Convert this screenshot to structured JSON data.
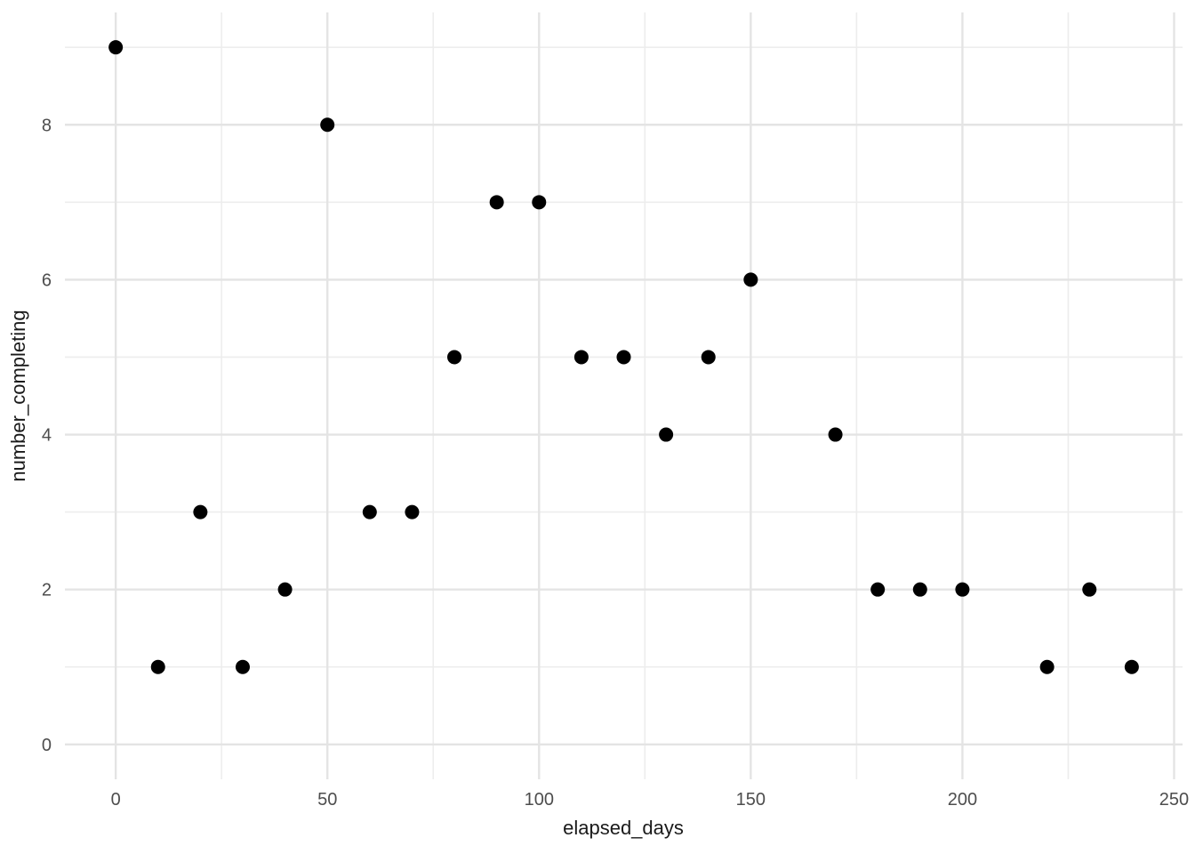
{
  "chart_data": {
    "type": "scatter",
    "title": "",
    "xlabel": "elapsed_days",
    "ylabel": "number_completing",
    "points": [
      [
        0,
        9
      ],
      [
        10,
        1
      ],
      [
        20,
        3
      ],
      [
        30,
        1
      ],
      [
        40,
        2
      ],
      [
        50,
        8
      ],
      [
        60,
        3
      ],
      [
        70,
        3
      ],
      [
        80,
        5
      ],
      [
        90,
        7
      ],
      [
        100,
        7
      ],
      [
        110,
        5
      ],
      [
        120,
        5
      ],
      [
        130,
        4
      ],
      [
        140,
        5
      ],
      [
        150,
        6
      ],
      [
        170,
        4
      ],
      [
        180,
        2
      ],
      [
        190,
        2
      ],
      [
        200,
        2
      ],
      [
        220,
        1
      ],
      [
        230,
        2
      ],
      [
        240,
        1
      ]
    ],
    "xlim": [
      -12,
      252
    ],
    "ylim": [
      -0.45,
      9.45
    ],
    "x_ticks": [
      0,
      50,
      100,
      150,
      200,
      250
    ],
    "x_minor_gridlines": [
      25,
      75,
      125,
      175,
      225
    ],
    "y_ticks": [
      0,
      2,
      4,
      6,
      8
    ],
    "y_minor_gridlines": [
      1,
      3,
      5,
      7,
      9
    ],
    "grid": "on",
    "legend": "none",
    "colors": {
      "point": "#000000",
      "grid_major": "#e4e4e4",
      "grid_minor": "#ededed",
      "tick_label": "#4d4d4d",
      "axis_title": "#1a1a1a",
      "panel_background": "#ffffff"
    }
  }
}
